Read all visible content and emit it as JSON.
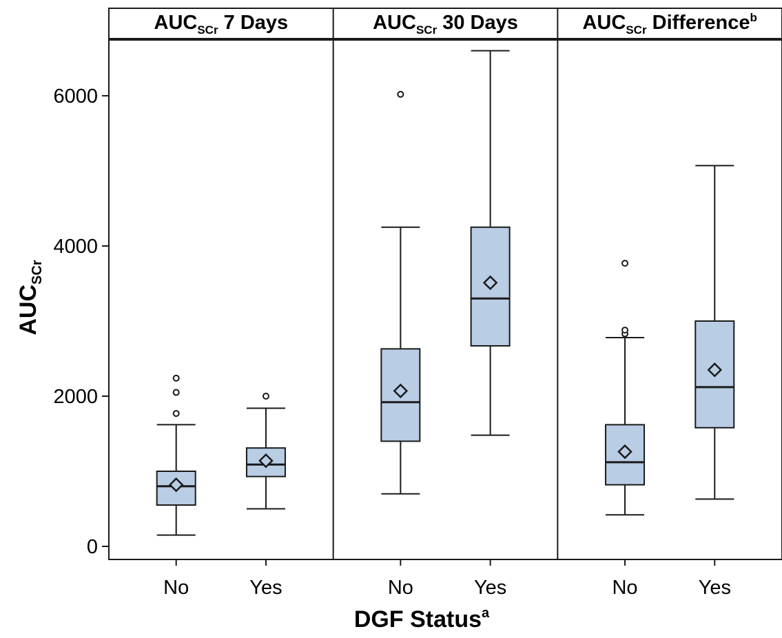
{
  "chart_data": {
    "type": "boxplot",
    "ylabel": "AUC",
    "ylabel_sub": "SCr",
    "xlabel": "DGF Status",
    "xlabel_sup": "a",
    "ylim": [
      -120,
      6700
    ],
    "yticks": [
      0,
      2000,
      4000,
      6000
    ],
    "ytick_labels": [
      "0",
      "2000",
      "4000",
      "6000"
    ],
    "categories": [
      "No",
      "Yes"
    ],
    "grid": false,
    "colors": {
      "box_fill": "#b9cde5",
      "line": "#1a1a1a"
    },
    "panels": [
      {
        "title_main": "AUC",
        "title_sub": "SCr",
        "title_rest": " 7 Days",
        "title_sup": "",
        "groups": [
          {
            "category": "No",
            "whisker_low": 150,
            "q1": 550,
            "median": 800,
            "q3": 1000,
            "whisker_high": 1620,
            "mean": 820,
            "outliers": [
              1770,
              2050,
              2240
            ]
          },
          {
            "category": "Yes",
            "whisker_low": 500,
            "q1": 930,
            "median": 1090,
            "q3": 1310,
            "whisker_high": 1840,
            "mean": 1140,
            "outliers": [
              2000
            ]
          }
        ]
      },
      {
        "title_main": "AUC",
        "title_sub": "SCr",
        "title_rest": " 30 Days",
        "title_sup": "",
        "groups": [
          {
            "category": "No",
            "whisker_low": 700,
            "q1": 1400,
            "median": 1920,
            "q3": 2630,
            "whisker_high": 4250,
            "mean": 2070,
            "outliers": [
              6020
            ]
          },
          {
            "category": "Yes",
            "whisker_low": 1480,
            "q1": 2670,
            "median": 3300,
            "q3": 4250,
            "whisker_high": 6600,
            "mean": 3510,
            "outliers": []
          }
        ]
      },
      {
        "title_main": "AUC",
        "title_sub": "SCr",
        "title_rest": " Difference",
        "title_sup": "b",
        "groups": [
          {
            "category": "No",
            "whisker_low": 420,
            "q1": 820,
            "median": 1120,
            "q3": 1620,
            "whisker_high": 2780,
            "mean": 1260,
            "outliers": [
              2830,
              2880,
              3770
            ]
          },
          {
            "category": "Yes",
            "whisker_low": 630,
            "q1": 1580,
            "median": 2120,
            "q3": 3000,
            "whisker_high": 5070,
            "mean": 2350,
            "outliers": []
          }
        ]
      }
    ]
  }
}
